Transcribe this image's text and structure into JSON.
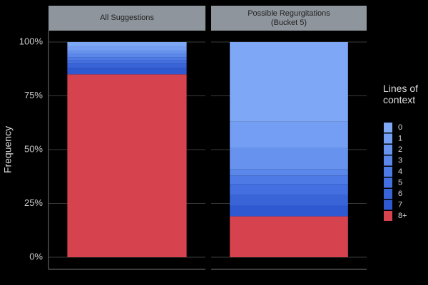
{
  "chart_data": {
    "type": "stacked-bar",
    "categories": [
      "All Suggestions",
      "Possible Regurgitations\n(Bucket 5)"
    ],
    "y_label": "Frequency",
    "legend_title": "Lines of context",
    "ylim": [
      0,
      100
    ],
    "yticks": [
      {
        "value": 0,
        "label": "0%"
      },
      {
        "value": 25,
        "label": "25%"
      },
      {
        "value": 50,
        "label": "50%"
      },
      {
        "value": 75,
        "label": "75%"
      },
      {
        "value": 100,
        "label": "100%"
      }
    ],
    "grid": true,
    "legend": "right",
    "series": [
      {
        "name": "0",
        "color": "#7ea8f6",
        "values": [
          2,
          37
        ]
      },
      {
        "name": "1",
        "color": "#739ef3",
        "values": [
          2,
          12
        ]
      },
      {
        "name": "2",
        "color": "#6793ef",
        "values": [
          1.5,
          10
        ]
      },
      {
        "name": "3",
        "color": "#5b87eb",
        "values": [
          1.5,
          3
        ]
      },
      {
        "name": "4",
        "color": "#4e7ae6",
        "values": [
          1.5,
          4
        ]
      },
      {
        "name": "5",
        "color": "#436fe0",
        "values": [
          1.5,
          5
        ]
      },
      {
        "name": "6",
        "color": "#3964d8",
        "values": [
          2,
          5
        ]
      },
      {
        "name": "7",
        "color": "#2f59d0",
        "values": [
          3,
          5
        ]
      },
      {
        "name": "8+",
        "color": "#d6424d",
        "values": [
          85,
          19
        ]
      }
    ]
  }
}
